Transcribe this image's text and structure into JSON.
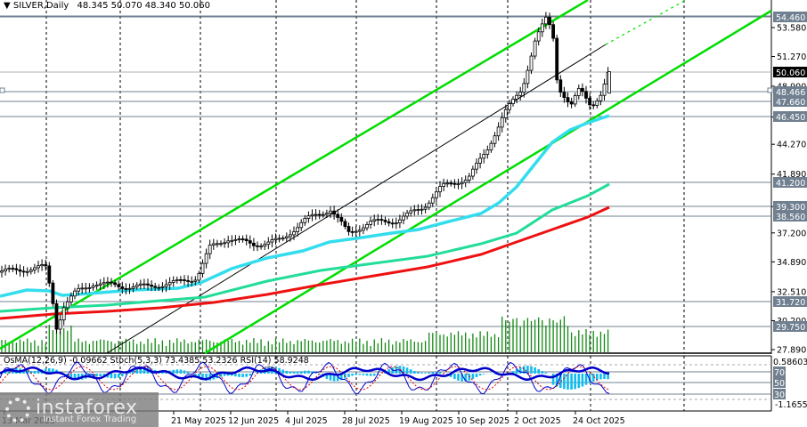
{
  "header": {
    "arrow": "▼",
    "symbol": "SILVER",
    "timeframe": "Daily",
    "ohlc": "48.345 50.070 48.340 50.060",
    "title_text": "SILVER,Daily  48.345 50.070 48.340 50.060"
  },
  "indicators_label": "OsMA(12,26,9) -0.09662  Stoch(5,3,3) 73.4385 53.2326  RSI(14) 58.9248",
  "watermark": {
    "brand": "instaforex",
    "tagline": "Instant Forex Trading"
  },
  "colors": {
    "channel": "#00dd00",
    "ma_fast": "#33ddee",
    "ma_mid": "#22dd99",
    "ma_slow": "#ee1111",
    "volume": "#118811",
    "osma": "#11bbee",
    "stoch_main": "#0000cc",
    "stoch_signal": "#dd0000",
    "level_line": "#708090",
    "tag_bg": "#708090",
    "current_bg": "#000000"
  },
  "chart_data": {
    "type": "candlestick",
    "title": "SILVER, Daily",
    "last": {
      "open": 48.345,
      "high": 50.07,
      "low": 48.34,
      "close": 50.06
    },
    "x_tick_labels": [
      "13 Mar 2025",
      "21 May 2025",
      "12 Jun 2025",
      "4 Jul 2025",
      "28 Jul 2025",
      "19 Aug 2025",
      "10 Sep 2025",
      "2 Oct 2025",
      "24 Oct 2025"
    ],
    "y_axis_ticks": [
      53.58,
      51.27,
      48.9,
      46.45,
      44.27,
      41.89,
      39.3,
      37.2,
      34.89,
      32.51,
      30.2,
      27.89
    ],
    "ylim": [
      27.2,
      55.9
    ],
    "price_levels": [
      {
        "value": 54.46,
        "label": "54.460"
      },
      {
        "value": 50.06,
        "label": "50.060",
        "current": true
      },
      {
        "value": 48.466,
        "label": "48.466"
      },
      {
        "value": 47.66,
        "label": "47.660"
      },
      {
        "value": 46.45,
        "label": "46.450"
      },
      {
        "value": 41.2,
        "label": "41.200"
      },
      {
        "value": 39.3,
        "label": "39.300"
      },
      {
        "value": 38.56,
        "label": "38.560"
      },
      {
        "value": 31.72,
        "label": "31.720"
      },
      {
        "value": 29.75,
        "label": "29.750"
      }
    ],
    "moving_averages": [
      {
        "name": "MA fast (cyan)",
        "start": 32.2,
        "end": 46.3
      },
      {
        "name": "MA mid (teal)",
        "start": 31.2,
        "end": 41.2
      },
      {
        "name": "MA slow (red)",
        "start": 30.6,
        "end": 39.2
      }
    ],
    "channel": "ascending parallel channel (green) with dashed midline",
    "subwindow": {
      "indicators": [
        "OsMA(12,26,9) -0.09662",
        "Stoch(5,3,3) 73.4385 53.2326",
        "RSI(14) 58.9248"
      ],
      "scale_top": "0.58603",
      "scale_bottom": "-1.16551",
      "levels": [
        "80",
        "70",
        "50",
        "30",
        "20"
      ]
    }
  }
}
